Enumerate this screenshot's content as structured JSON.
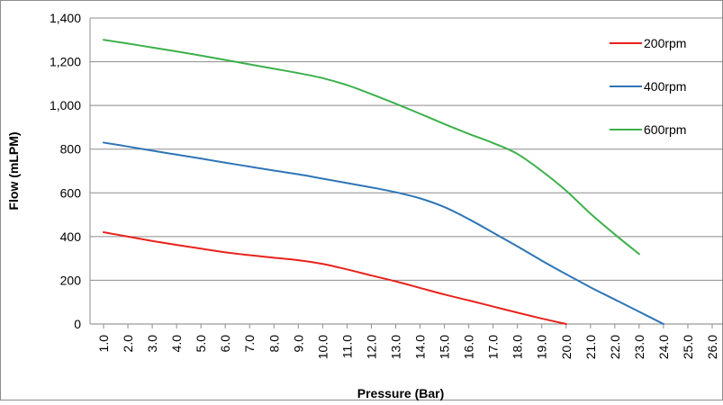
{
  "chart_data": {
    "type": "line",
    "title": "",
    "xlabel": "Pressure (Bar)",
    "ylabel": "Flow (mLPM)",
    "x": [
      1.0,
      2.0,
      3.0,
      4.0,
      5.0,
      6.0,
      7.0,
      8.0,
      9.0,
      10.0,
      11.0,
      12.0,
      13.0,
      14.0,
      15.0,
      16.0,
      17.0,
      18.0,
      19.0,
      20.0,
      21.0,
      22.0,
      23.0,
      24.0,
      25.0,
      26.0
    ],
    "x_tick_labels": [
      "1.0",
      "2.0",
      "3.0",
      "4.0",
      "5.0",
      "6.0",
      "7.0",
      "8.0",
      "9.0",
      "10.0",
      "11.0",
      "12.0",
      "13.0",
      "14.0",
      "15.0",
      "16.0",
      "17.0",
      "18.0",
      "19.0",
      "20.0",
      "21.0",
      "22.0",
      "23.0",
      "24.0",
      "25.0",
      "26.0"
    ],
    "y_tick_labels": [
      "0",
      "200",
      "400",
      "600",
      "800",
      "1,000",
      "1,200",
      "1,400"
    ],
    "y_ticks": [
      0,
      200,
      400,
      600,
      800,
      1000,
      1200,
      1400
    ],
    "ylim": [
      0,
      1400
    ],
    "grid": "horizontal",
    "legend_position": "right",
    "series": [
      {
        "name": "200rpm",
        "color": "#e8221c",
        "points": [
          [
            1.0,
            420
          ],
          [
            2.0,
            400
          ],
          [
            3.0,
            380
          ],
          [
            4.0,
            362
          ],
          [
            5.0,
            345
          ],
          [
            6.0,
            328
          ],
          [
            7.0,
            315
          ],
          [
            8.0,
            303
          ],
          [
            9.0,
            292
          ],
          [
            10.0,
            275
          ],
          [
            11.0,
            250
          ],
          [
            12.0,
            222
          ],
          [
            13.0,
            195
          ],
          [
            14.0,
            165
          ],
          [
            15.0,
            135
          ],
          [
            16.0,
            108
          ],
          [
            17.0,
            80
          ],
          [
            18.0,
            52
          ],
          [
            19.0,
            25
          ],
          [
            20.0,
            0
          ]
        ]
      },
      {
        "name": "400rpm",
        "color": "#2e75b6",
        "points": [
          [
            1.0,
            830
          ],
          [
            2.0,
            812
          ],
          [
            3.0,
            793
          ],
          [
            4.0,
            775
          ],
          [
            5.0,
            757
          ],
          [
            6.0,
            738
          ],
          [
            7.0,
            720
          ],
          [
            8.0,
            702
          ],
          [
            9.0,
            685
          ],
          [
            10.0,
            665
          ],
          [
            11.0,
            645
          ],
          [
            12.0,
            625
          ],
          [
            13.0,
            603
          ],
          [
            14.0,
            575
          ],
          [
            15.0,
            535
          ],
          [
            16.0,
            480
          ],
          [
            17.0,
            418
          ],
          [
            18.0,
            355
          ],
          [
            19.0,
            290
          ],
          [
            20.0,
            228
          ],
          [
            21.0,
            168
          ],
          [
            22.0,
            112
          ],
          [
            23.0,
            56
          ],
          [
            24.0,
            0
          ]
        ]
      },
      {
        "name": "600rpm",
        "color": "#3cb04b",
        "points": [
          [
            1.0,
            1300
          ],
          [
            2.0,
            1283
          ],
          [
            3.0,
            1265
          ],
          [
            4.0,
            1247
          ],
          [
            5.0,
            1228
          ],
          [
            6.0,
            1208
          ],
          [
            7.0,
            1188
          ],
          [
            8.0,
            1168
          ],
          [
            9.0,
            1148
          ],
          [
            10.0,
            1125
          ],
          [
            11.0,
            1093
          ],
          [
            12.0,
            1052
          ],
          [
            13.0,
            1008
          ],
          [
            14.0,
            962
          ],
          [
            15.0,
            915
          ],
          [
            16.0,
            870
          ],
          [
            17.0,
            828
          ],
          [
            18.0,
            778
          ],
          [
            19.0,
            700
          ],
          [
            20.0,
            610
          ],
          [
            21.0,
            505
          ],
          [
            22.0,
            410
          ],
          [
            23.0,
            320
          ]
        ]
      }
    ]
  }
}
